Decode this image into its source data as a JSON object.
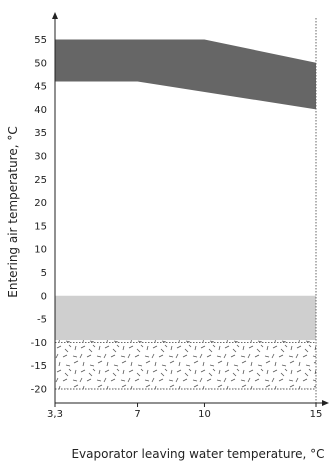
{
  "chart_data": {
    "type": "area",
    "title": "",
    "xlabel": "Evaporator leaving water temperature, °C",
    "ylabel": "Entering air temperature, °C",
    "xlim": [
      3.3,
      15
    ],
    "ylim": [
      -20,
      55
    ],
    "x_ticks": [
      3.3,
      7,
      10,
      15
    ],
    "x_tick_labels": [
      "3,3",
      "7",
      "10",
      "15"
    ],
    "y_ticks": [
      55,
      50,
      45,
      40,
      35,
      30,
      25,
      20,
      15,
      10,
      5,
      0,
      -5,
      -10,
      -15,
      -20
    ],
    "y_tick_labels": [
      "55",
      "50",
      "45",
      "40",
      "35",
      "30",
      "25",
      "20",
      "15",
      "10",
      "5",
      "0",
      "-5",
      "-10",
      "-15",
      "-20"
    ],
    "grid": false,
    "reference_lines": {
      "vertical_dotted": [
        3.3,
        15
      ],
      "horizontal_dotted": [
        -10,
        -20
      ]
    },
    "regions": [
      {
        "style": "dark-gray",
        "color": "#666666",
        "polygon": [
          [
            3.3,
            55
          ],
          [
            10,
            55
          ],
          [
            15,
            50
          ],
          [
            15,
            40
          ],
          [
            7,
            46
          ],
          [
            3.3,
            46
          ]
        ]
      },
      {
        "style": "light-gray",
        "color": "#cfcfcf",
        "polygon": [
          [
            3.3,
            0
          ],
          [
            15,
            0
          ],
          [
            15,
            -9.5
          ],
          [
            3.3,
            -9.5
          ]
        ]
      },
      {
        "style": "speckle-pattern",
        "color": "#555555",
        "polygon": [
          [
            3.3,
            -9.5
          ],
          [
            15,
            -9.5
          ],
          [
            15,
            -20
          ],
          [
            3.3,
            -20
          ]
        ]
      }
    ]
  }
}
